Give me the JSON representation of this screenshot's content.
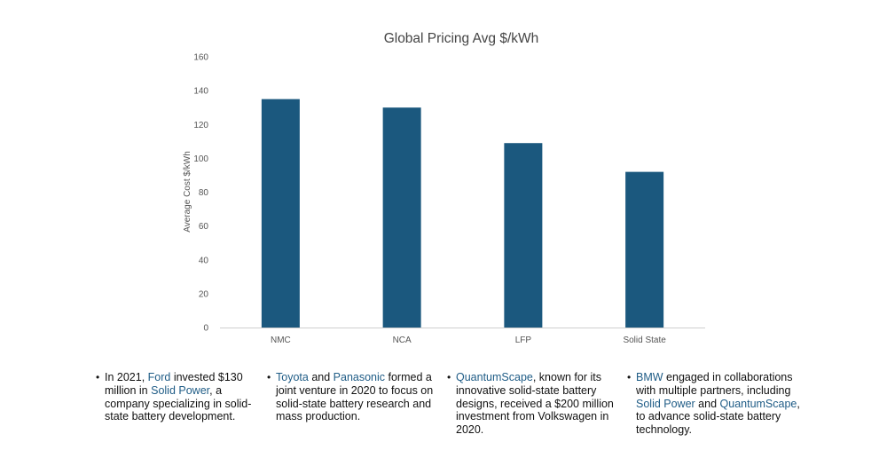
{
  "chart_data": {
    "type": "bar",
    "title": "Global Pricing Avg $/kWh",
    "xlabel": "",
    "ylabel": "Average Cost $/kWh",
    "categories": [
      "NMC",
      "NCA",
      "LFP",
      "Solid State"
    ],
    "values": [
      135,
      130,
      109,
      92
    ],
    "ylim": [
      0,
      160
    ],
    "yticks": [
      0,
      20,
      40,
      60,
      80,
      100,
      120,
      140,
      160
    ],
    "grid": false,
    "legend": "none",
    "bar_color": "#1B587E"
  },
  "notes": [
    {
      "parts": [
        {
          "text": "In 2021, "
        },
        {
          "text": "Ford",
          "highlight": true
        },
        {
          "text": " invested $130 million in "
        },
        {
          "text": "Solid Power",
          "highlight": true
        },
        {
          "text": ", a company specializing in solid-state battery development."
        }
      ]
    },
    {
      "parts": [
        {
          "text": "Toyota",
          "highlight": true
        },
        {
          "text": " and "
        },
        {
          "text": "Panasonic",
          "highlight": true
        },
        {
          "text": " formed a joint venture in 2020 to focus on solid-state battery research and mass production."
        }
      ]
    },
    {
      "parts": [
        {
          "text": "QuantumScape",
          "highlight": true
        },
        {
          "text": ", known for its innovative solid-state battery designs, received a $200 million investment from Volkswagen in 2020."
        }
      ]
    },
    {
      "parts": [
        {
          "text": "BMW",
          "highlight": true
        },
        {
          "text": " engaged in collaborations with multiple partners, including "
        },
        {
          "text": "Solid Power",
          "highlight": true
        },
        {
          "text": " and "
        },
        {
          "text": "QuantumScape",
          "highlight": true
        },
        {
          "text": ", to advance solid-state battery technology."
        }
      ]
    }
  ]
}
